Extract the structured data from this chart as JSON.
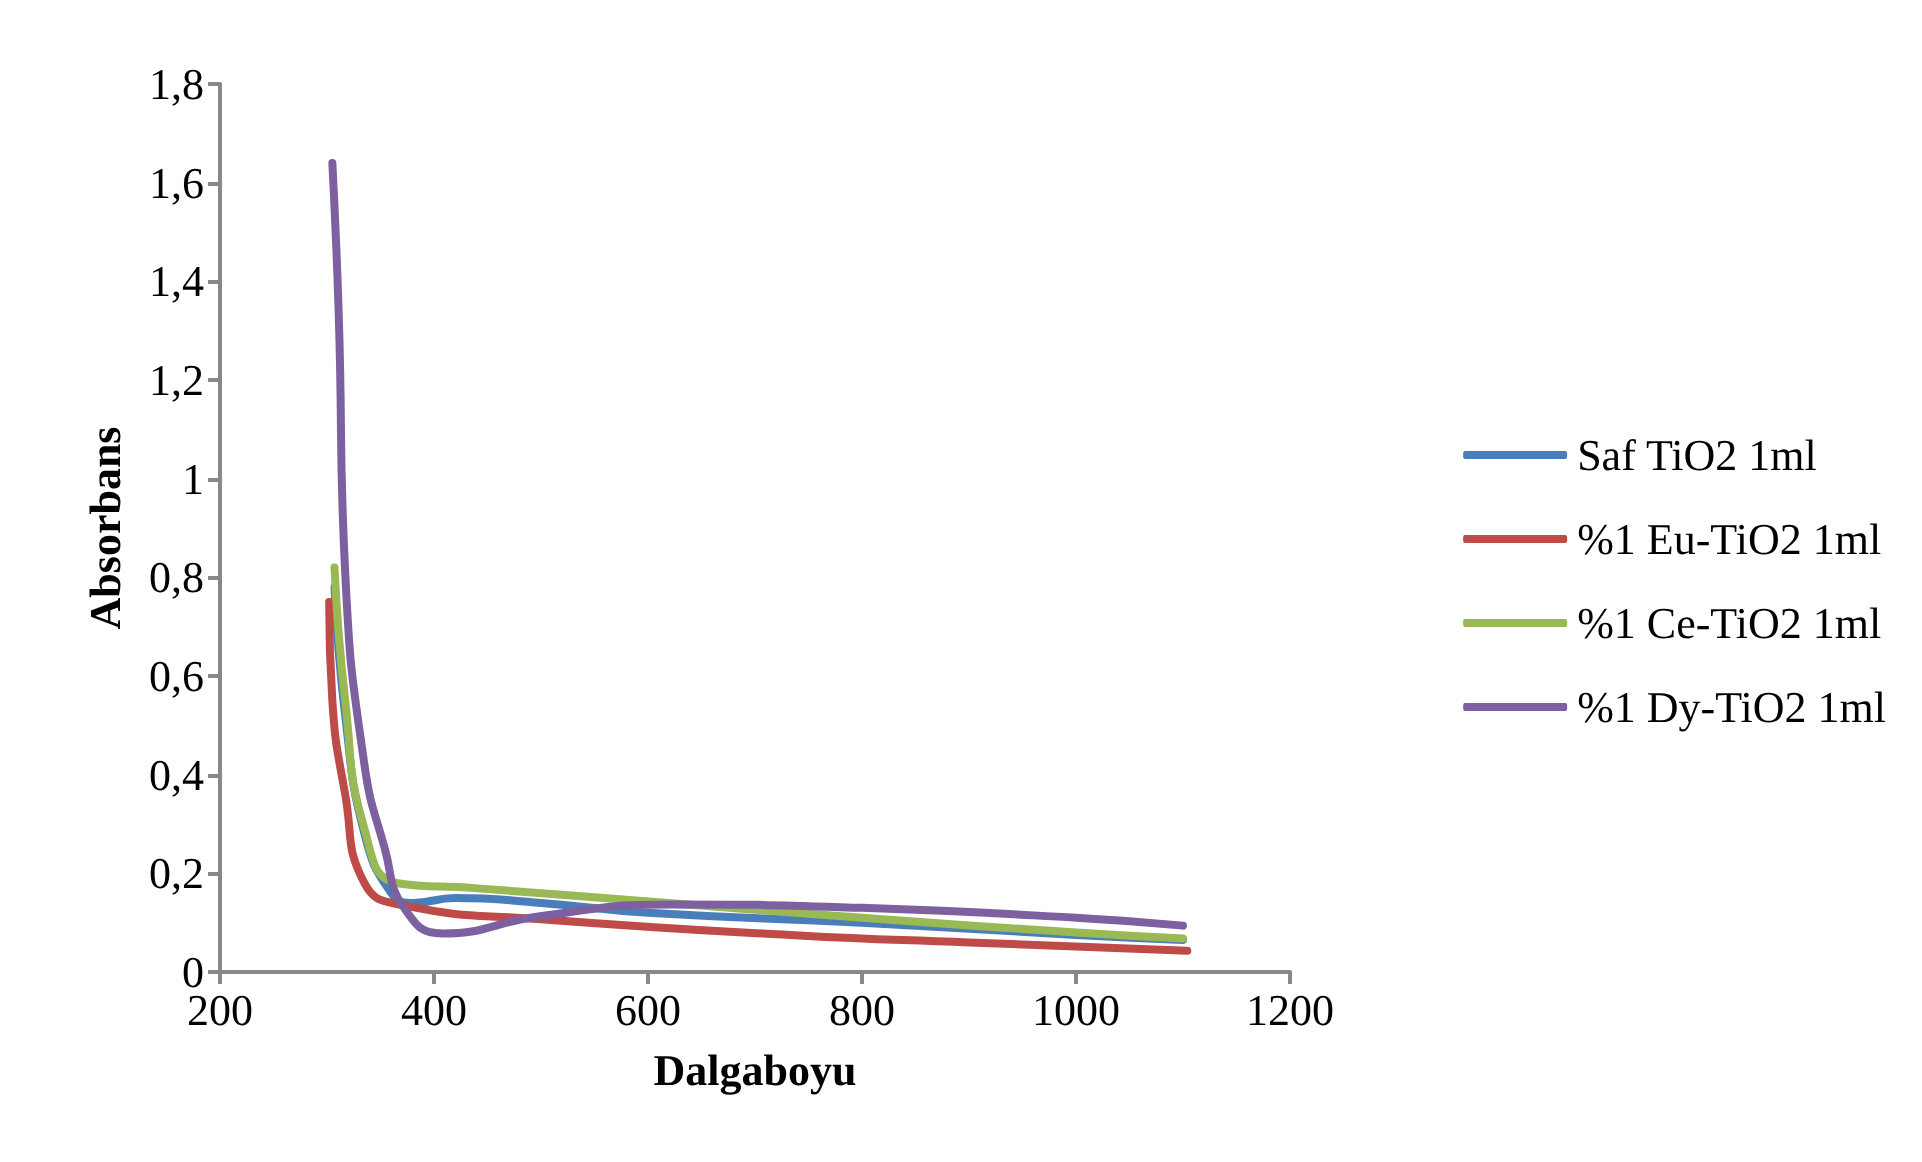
{
  "chart_data": {
    "type": "line",
    "xlabel": "Dalgaboyu",
    "ylabel": "Absorbans",
    "xlim": [
      200,
      1200
    ],
    "xticks": [
      200,
      400,
      600,
      800,
      1000,
      1200
    ],
    "ylim": [
      0,
      1.8
    ],
    "yticks": [
      0,
      {
        "value": 0.2,
        "label": "0,2"
      },
      {
        "value": 0.4,
        "label": "0,4"
      },
      {
        "value": 0.6,
        "label": "0,6"
      },
      {
        "value": 0.8,
        "label": "0,8"
      },
      1,
      {
        "value": 1.2,
        "label": "1,2"
      },
      {
        "value": 1.4,
        "label": "1,4"
      },
      {
        "value": 1.6,
        "label": "1,6"
      },
      {
        "value": 1.8,
        "label": "1,8"
      }
    ],
    "grid": false,
    "legend": "right",
    "marker": "none",
    "line_style": "solid",
    "series": [
      {
        "name": "Saf TiO2 1ml",
        "color": "#4a7ebb",
        "x": [
          307,
          317,
          335,
          360,
          380,
          420,
          500,
          600,
          800,
          1000,
          1100
        ],
        "values": [
          0.78,
          0.52,
          0.28,
          0.16,
          0.14,
          0.15,
          0.14,
          0.12,
          0.1,
          0.075,
          0.065
        ]
      },
      {
        "name": "%1 Eu-TiO2 1ml",
        "color": "#be4b48",
        "x": [
          302,
          305,
          317,
          335,
          372,
          500,
          741,
          900,
          1104
        ],
        "values": [
          0.75,
          0.55,
          0.36,
          0.18,
          0.135,
          0.107,
          0.074,
          0.06,
          0.043
        ]
      },
      {
        "name": "%1 Ce-TiO2 1ml",
        "color": "#98b954",
        "x": [
          307,
          317,
          335,
          366,
          438,
          619,
          800,
          1000,
          1100
        ],
        "values": [
          0.82,
          0.55,
          0.29,
          0.18,
          0.17,
          0.14,
          0.11,
          0.08,
          0.068
        ]
      },
      {
        "name": "%1 Dy-TiO2 1ml",
        "color": "#7d60a0",
        "x": [
          305,
          311,
          317,
          335,
          354,
          372,
          408,
          499,
          619,
          800,
          1000,
          1100
        ],
        "values": [
          1.64,
          1.33,
          0.81,
          0.42,
          0.25,
          0.13,
          0.078,
          0.113,
          0.137,
          0.13,
          0.11,
          0.094
        ]
      }
    ]
  }
}
